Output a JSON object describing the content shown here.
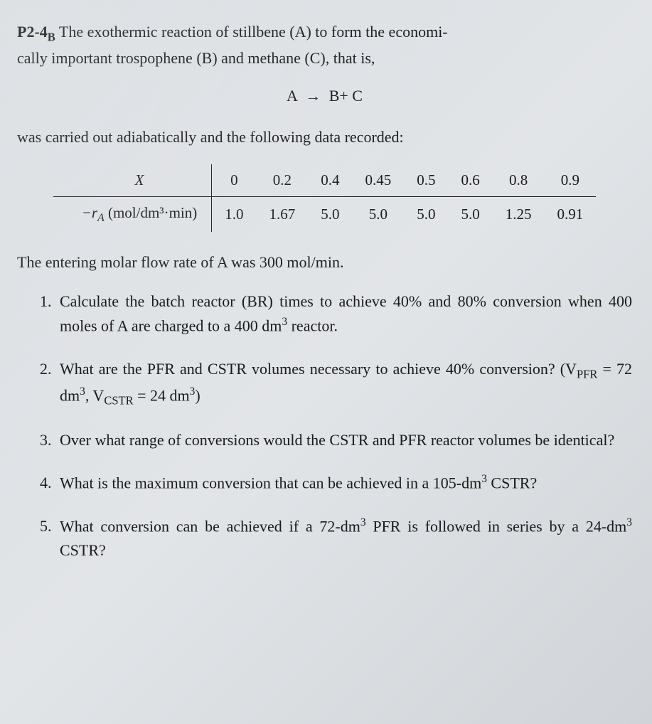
{
  "problem": {
    "label": "P2-4",
    "label_sub": "B",
    "intro_part1": " The exothermic reaction of stillbene (A) to form the economi-",
    "intro_part2": "cally important trospophene (B) and methane (C), that is,"
  },
  "equation": {
    "lhs": "A",
    "arrow": "→",
    "rhs": "B+ C"
  },
  "transition": "was carried out adiabatically and the following data recorded:",
  "table": {
    "row1_label": "X",
    "row2_label_prefix": "−r",
    "row2_label_sub": "A",
    "row2_label_units": " (mol/dm³·min)",
    "x_values": [
      "0",
      "0.2",
      "0.4",
      "0.45",
      "0.5",
      "0.6",
      "0.8",
      "0.9"
    ],
    "rate_values": [
      "1.0",
      "1.67",
      "5.0",
      "5.0",
      "5.0",
      "5.0",
      "1.25",
      "0.91"
    ]
  },
  "flow_rate": "The entering molar flow rate of A was 300 mol/min.",
  "questions": {
    "q1_a": "Calculate the batch reactor (BR) times to achieve 40% and 80% conversion when 400 moles of A are charged to a 400 dm",
    "q1_b": " reactor.",
    "q2_a": "What are the PFR and CSTR volumes necessary to achieve 40% conversion? (V",
    "q2_pfr": "PFR",
    "q2_b": " = 72 dm",
    "q2_c": ", V",
    "q2_cstr": "CSTR",
    "q2_d": " = 24 dm",
    "q2_e": ")",
    "q3": "Over what range of conversions would the CSTR and PFR reactor volumes be identical?",
    "q4_a": "What is the maximum conversion that can be achieved in a 105-dm",
    "q4_b": " CSTR?",
    "q5_a": "What conversion can be achieved if a 72-dm",
    "q5_b": " PFR is followed in series by a 24-dm",
    "q5_c": " CSTR?"
  },
  "style": {
    "cube": "3"
  }
}
